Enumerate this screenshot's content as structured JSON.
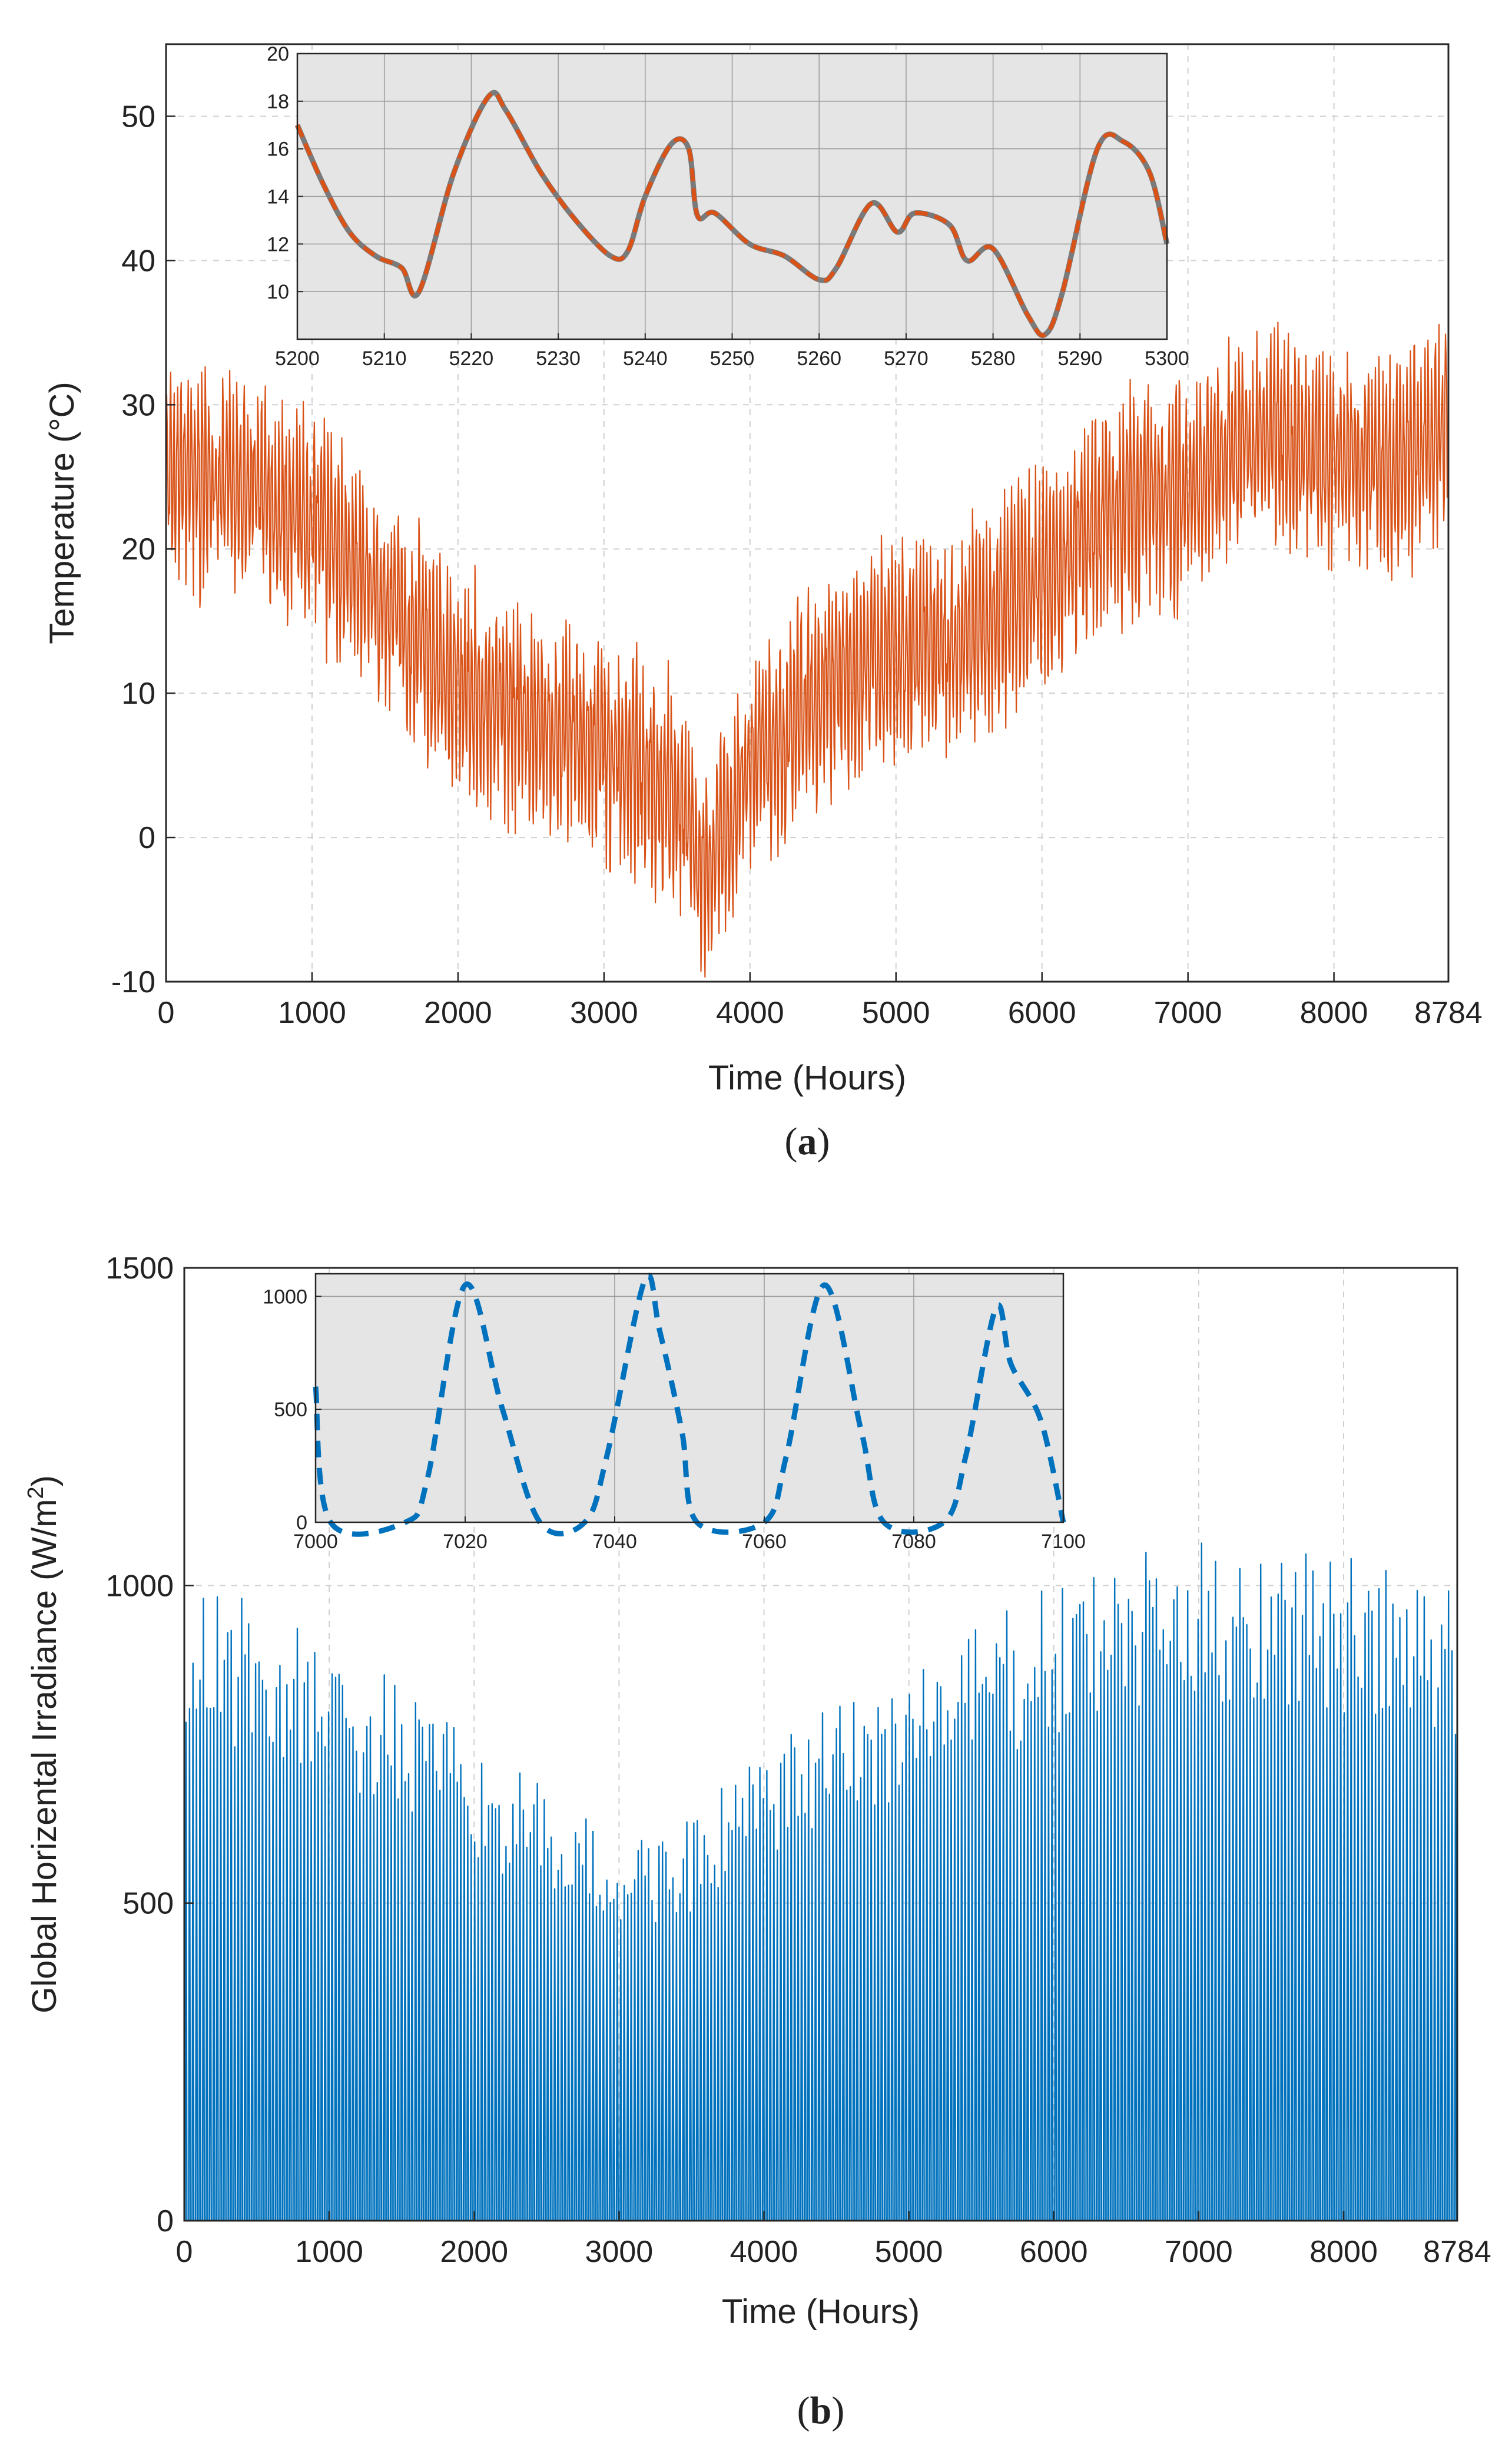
{
  "chart_data": [
    {
      "id": "a",
      "type": "line",
      "panel_label": "a",
      "xlabel": "Time (Hours)",
      "ylabel": "Temperature (°C)",
      "xlim": [
        0,
        8784
      ],
      "ylim": [
        -10,
        55
      ],
      "x_ticks": [
        0,
        1000,
        2000,
        3000,
        4000,
        5000,
        6000,
        7000,
        8000,
        8784
      ],
      "y_ticks": [
        -10,
        0,
        10,
        20,
        30,
        40,
        50
      ],
      "grid": true,
      "color": "#D95319",
      "series": [
        {
          "x": [
            0,
            500,
            1000,
            1500,
            2000,
            2500,
            3000,
            3500,
            3700,
            4000,
            4500,
            5000,
            5500,
            6000,
            6500,
            7000,
            7500,
            8000,
            8500,
            8784
          ],
          "y": [
            25,
            25,
            22,
            16,
            11,
            8,
            6,
            3,
            -3,
            5,
            10,
            13,
            14,
            18,
            23,
            24,
            28,
            26,
            26,
            29
          ]
        }
      ],
      "inset": {
        "type": "line",
        "style": "dashed",
        "xlim": [
          5200,
          5300
        ],
        "ylim": [
          8,
          20
        ],
        "x_ticks": [
          5200,
          5210,
          5220,
          5230,
          5240,
          5250,
          5260,
          5270,
          5280,
          5290,
          5300
        ],
        "y_ticks": [
          10,
          12,
          14,
          16,
          18,
          20
        ],
        "x": [
          5200,
          5203,
          5206,
          5209,
          5212,
          5214,
          5218,
          5222,
          5224,
          5228,
          5232,
          5236,
          5238,
          5240,
          5243,
          5245,
          5246,
          5248,
          5252,
          5256,
          5260,
          5262,
          5266,
          5269,
          5271,
          5275,
          5277,
          5280,
          5284,
          5286,
          5288,
          5292,
          5295,
          5298,
          5300
        ],
        "y": [
          17,
          14.5,
          12.5,
          11.5,
          11,
          10,
          15,
          18.2,
          17.6,
          15,
          13,
          11.5,
          11.7,
          14,
          16.2,
          16,
          13.2,
          13.3,
          12,
          11.5,
          10.5,
          11,
          13.7,
          12.5,
          13.3,
          12.8,
          11.3,
          11.8,
          9,
          8.2,
          10,
          16,
          16.3,
          15,
          12
        ]
      }
    },
    {
      "id": "b",
      "type": "line",
      "panel_label": "b",
      "xlabel": "Time (Hours)",
      "ylabel": "Global Horizental Irradiance (W/m",
      "ylabel_sup": "2",
      "ylabel_end": ")",
      "xlim": [
        0,
        8784
      ],
      "ylim": [
        0,
        1500
      ],
      "x_ticks": [
        0,
        1000,
        2000,
        3000,
        4000,
        5000,
        6000,
        7000,
        8000,
        8784
      ],
      "y_ticks": [
        0,
        500,
        1000,
        1500
      ],
      "grid": true,
      "color": "#0072BD",
      "series": [
        {
          "x": [
            0,
            500,
            1000,
            1500,
            2000,
            2500,
            3000,
            3500,
            4000,
            4500,
            5000,
            5500,
            6000,
            6500,
            7000,
            7500,
            8000,
            8500,
            8784
          ],
          "y": [
            1000,
            980,
            900,
            850,
            750,
            680,
            600,
            640,
            740,
            820,
            880,
            950,
            1000,
            1050,
            1070,
            1080,
            1050,
            1010,
            1000
          ]
        }
      ],
      "inset": {
        "type": "line",
        "style": "dashed",
        "xlim": [
          7000,
          7100
        ],
        "ylim": [
          0,
          1100
        ],
        "x_ticks": [
          7000,
          7020,
          7040,
          7060,
          7080,
          7100
        ],
        "y_ticks": [
          0,
          500,
          1000
        ],
        "x": [
          7000,
          7002,
          7012,
          7015,
          7020,
          7025,
          7030,
          7036,
          7039,
          7044,
          7046,
          7049,
          7051,
          7060,
          7063,
          7068,
          7073,
          7076,
          7084,
          7087,
          7091,
          7093,
          7097,
          7100
        ],
        "y": [
          600,
          0,
          0,
          200,
          1050,
          500,
          0,
          0,
          300,
          1070,
          850,
          400,
          0,
          0,
          300,
          1050,
          400,
          0,
          0,
          300,
          950,
          700,
          450,
          0
        ]
      }
    }
  ]
}
